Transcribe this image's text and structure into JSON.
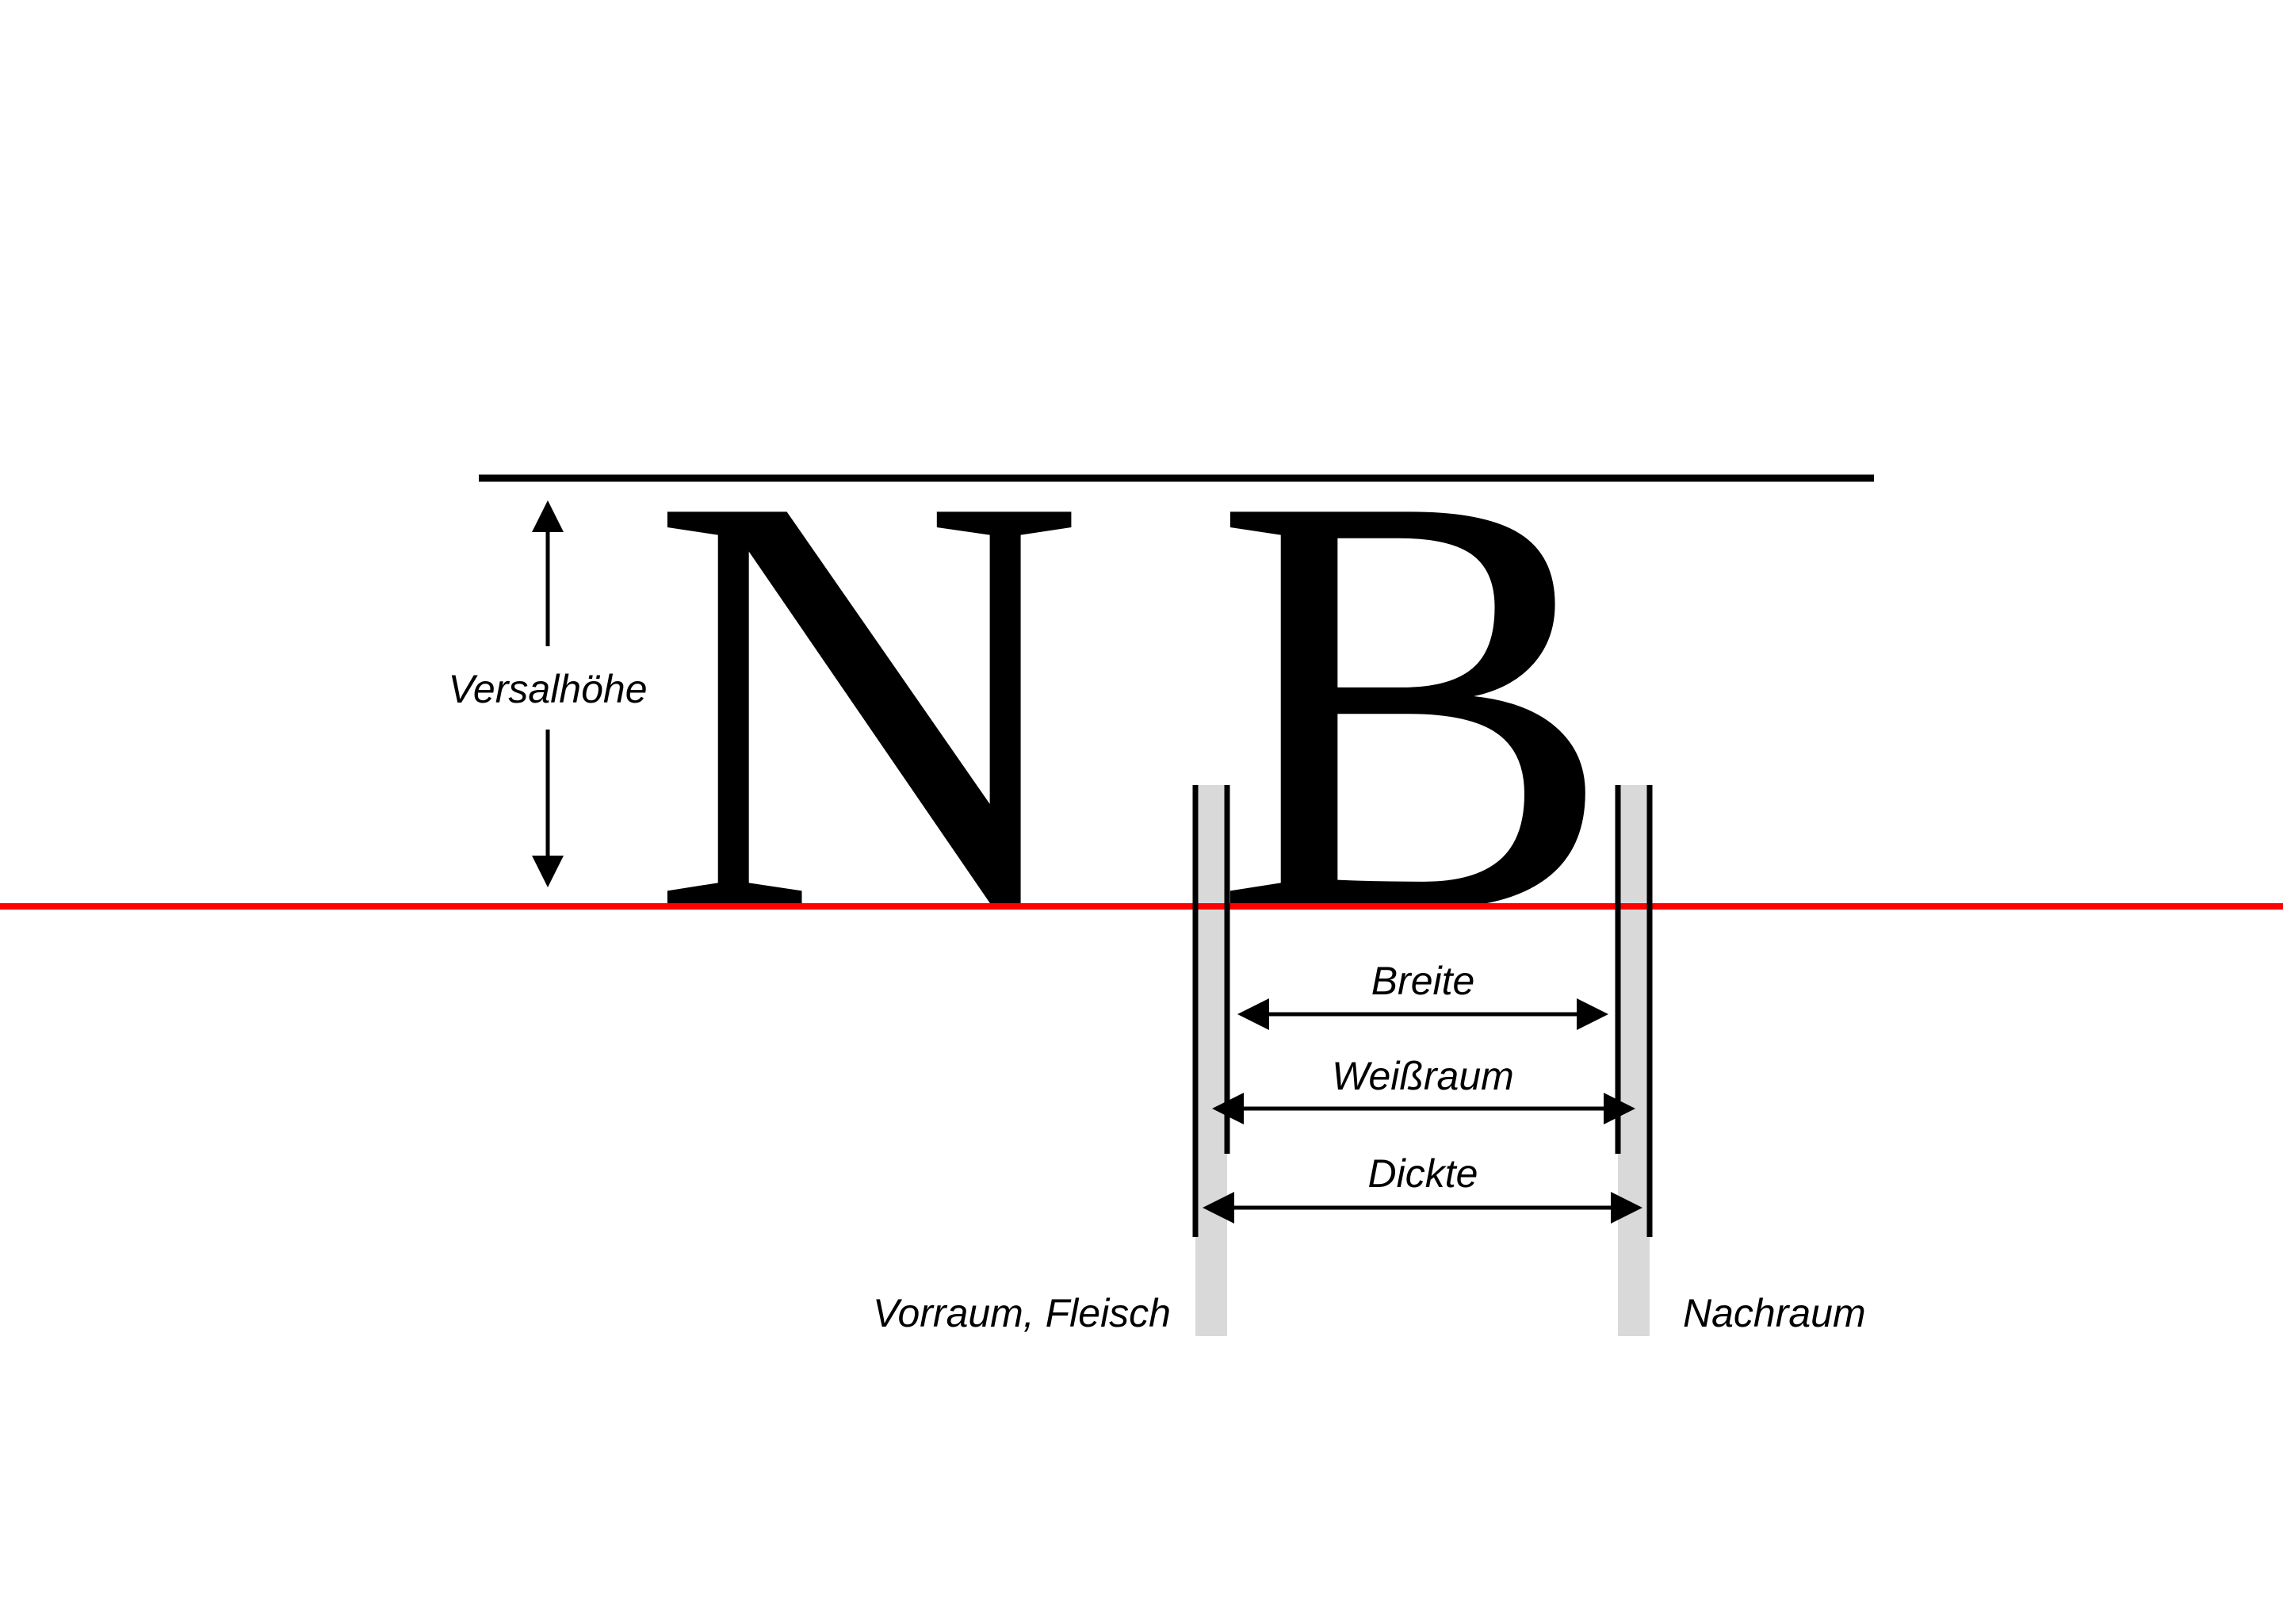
{
  "diagram": {
    "glyphs": {
      "first": "N",
      "second": "B"
    },
    "labels": {
      "cap_height": "Versalhöhe",
      "width": "Breite",
      "whitespace": "Weißraum",
      "advance_width": "Dickte",
      "left_side_bearing": "Vorraum, Fleisch",
      "right_side_bearing": "Nachraum"
    },
    "colors": {
      "baseline": "#ff0000",
      "bearing_band": "#d9d9d9",
      "ink": "#000000",
      "background": "#ffffff"
    }
  }
}
